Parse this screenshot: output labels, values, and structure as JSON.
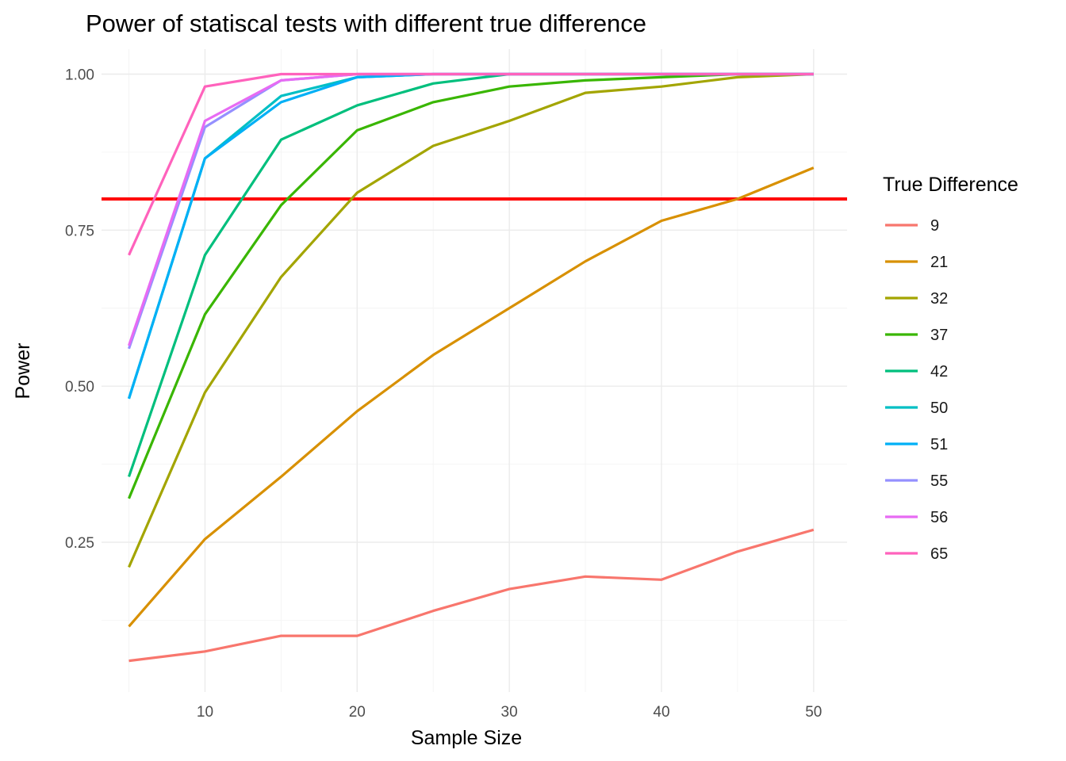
{
  "chart_data": {
    "type": "line",
    "title": "Power of statiscal tests with different true difference",
    "xlabel": "Sample Size",
    "ylabel": "Power",
    "x": [
      5,
      10,
      15,
      20,
      25,
      30,
      35,
      40,
      45,
      50
    ],
    "xlim": [
      3.2,
      52.2
    ],
    "ylim": [
      0.01,
      1.04
    ],
    "x_ticks": [
      10,
      20,
      30,
      40,
      50
    ],
    "x_tick_labels": [
      "10",
      "20",
      "30",
      "40",
      "50"
    ],
    "y_ticks": [
      0.25,
      0.5,
      0.75,
      1.0
    ],
    "y_tick_labels": [
      "0.25",
      "0.50",
      "0.75",
      "1.00"
    ],
    "grid": true,
    "legend": {
      "title": "True Difference",
      "position": "right"
    },
    "reference_line": {
      "y": 0.8,
      "color": "#ff0000"
    },
    "series": [
      {
        "name": "9",
        "color": "#f8766d",
        "values": [
          0.06,
          0.075,
          0.1,
          0.1,
          0.14,
          0.175,
          0.195,
          0.19,
          0.235,
          0.27
        ]
      },
      {
        "name": "21",
        "color": "#d89000",
        "values": [
          0.115,
          0.255,
          0.355,
          0.46,
          0.55,
          0.625,
          0.7,
          0.765,
          0.8,
          0.85
        ]
      },
      {
        "name": "32",
        "color": "#a3a500",
        "values": [
          0.21,
          0.49,
          0.675,
          0.81,
          0.885,
          0.925,
          0.97,
          0.98,
          0.995,
          1.0
        ]
      },
      {
        "name": "37",
        "color": "#39b600",
        "values": [
          0.32,
          0.615,
          0.79,
          0.91,
          0.955,
          0.98,
          0.99,
          0.995,
          1.0,
          1.0
        ]
      },
      {
        "name": "42",
        "color": "#00bf7d",
        "values": [
          0.355,
          0.71,
          0.895,
          0.95,
          0.985,
          1.0,
          1.0,
          1.0,
          1.0,
          1.0
        ]
      },
      {
        "name": "50",
        "color": "#00bfc4",
        "values": [
          0.48,
          0.865,
          0.965,
          0.995,
          1.0,
          1.0,
          1.0,
          1.0,
          1.0,
          1.0
        ]
      },
      {
        "name": "51",
        "color": "#00b0f6",
        "values": [
          0.48,
          0.865,
          0.955,
          0.995,
          1.0,
          1.0,
          1.0,
          1.0,
          1.0,
          1.0
        ]
      },
      {
        "name": "55",
        "color": "#9590ff",
        "values": [
          0.56,
          0.915,
          0.99,
          1.0,
          1.0,
          1.0,
          1.0,
          1.0,
          1.0,
          1.0
        ]
      },
      {
        "name": "56",
        "color": "#e76bf3",
        "values": [
          0.565,
          0.925,
          0.99,
          1.0,
          1.0,
          1.0,
          1.0,
          1.0,
          1.0,
          1.0
        ]
      },
      {
        "name": "65",
        "color": "#ff62bc",
        "values": [
          0.71,
          0.98,
          1.0,
          1.0,
          1.0,
          1.0,
          1.0,
          1.0,
          1.0,
          1.0
        ]
      }
    ]
  }
}
